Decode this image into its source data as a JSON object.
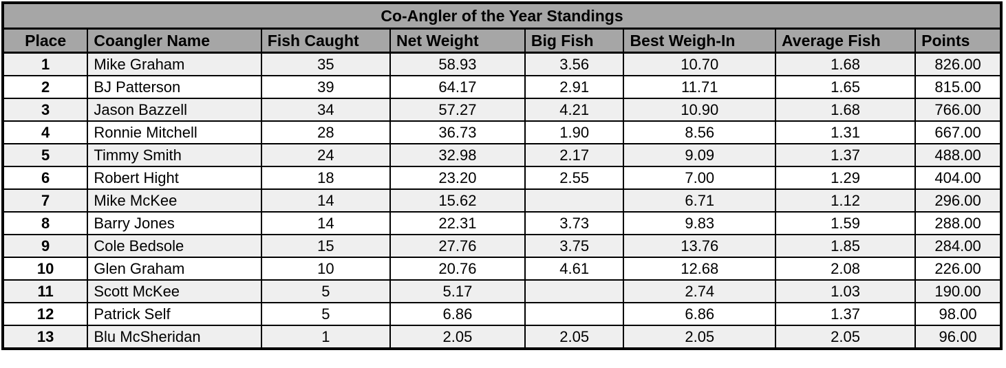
{
  "table": {
    "title": "Co-Angler of the Year Standings",
    "columns": [
      {
        "key": "place",
        "label": "Place"
      },
      {
        "key": "name",
        "label": "Coangler Name"
      },
      {
        "key": "fish_caught",
        "label": "Fish Caught"
      },
      {
        "key": "net_weight",
        "label": "Net Weight"
      },
      {
        "key": "big_fish",
        "label": "Big Fish"
      },
      {
        "key": "best_weigh_in",
        "label": "Best Weigh-In"
      },
      {
        "key": "average_fish",
        "label": "Average Fish"
      },
      {
        "key": "points",
        "label": "Points"
      }
    ],
    "rows": [
      {
        "place": "1",
        "name": "Mike Graham",
        "fish_caught": "35",
        "net_weight": "58.93",
        "big_fish": "3.56",
        "best_weigh_in": "10.70",
        "average_fish": "1.68",
        "points": "826.00"
      },
      {
        "place": "2",
        "name": "BJ Patterson",
        "fish_caught": "39",
        "net_weight": "64.17",
        "big_fish": "2.91",
        "best_weigh_in": "11.71",
        "average_fish": "1.65",
        "points": "815.00"
      },
      {
        "place": "3",
        "name": "Jason Bazzell",
        "fish_caught": "34",
        "net_weight": "57.27",
        "big_fish": "4.21",
        "best_weigh_in": "10.90",
        "average_fish": "1.68",
        "points": "766.00"
      },
      {
        "place": "4",
        "name": "Ronnie Mitchell",
        "fish_caught": "28",
        "net_weight": "36.73",
        "big_fish": "1.90",
        "best_weigh_in": "8.56",
        "average_fish": "1.31",
        "points": "667.00"
      },
      {
        "place": "5",
        "name": "Timmy Smith",
        "fish_caught": "24",
        "net_weight": "32.98",
        "big_fish": "2.17",
        "best_weigh_in": "9.09",
        "average_fish": "1.37",
        "points": "488.00"
      },
      {
        "place": "6",
        "name": "Robert Hight",
        "fish_caught": "18",
        "net_weight": "23.20",
        "big_fish": "2.55",
        "best_weigh_in": "7.00",
        "average_fish": "1.29",
        "points": "404.00"
      },
      {
        "place": "7",
        "name": "Mike McKee",
        "fish_caught": "14",
        "net_weight": "15.62",
        "big_fish": "",
        "best_weigh_in": "6.71",
        "average_fish": "1.12",
        "points": "296.00"
      },
      {
        "place": "8",
        "name": "Barry Jones",
        "fish_caught": "14",
        "net_weight": "22.31",
        "big_fish": "3.73",
        "best_weigh_in": "9.83",
        "average_fish": "1.59",
        "points": "288.00"
      },
      {
        "place": "9",
        "name": "Cole Bedsole",
        "fish_caught": "15",
        "net_weight": "27.76",
        "big_fish": "3.75",
        "best_weigh_in": "13.76",
        "average_fish": "1.85",
        "points": "284.00"
      },
      {
        "place": "10",
        "name": "Glen Graham",
        "fish_caught": "10",
        "net_weight": "20.76",
        "big_fish": "4.61",
        "best_weigh_in": "12.68",
        "average_fish": "2.08",
        "points": "226.00"
      },
      {
        "place": "11",
        "name": "Scott McKee",
        "fish_caught": "5",
        "net_weight": "5.17",
        "big_fish": "",
        "best_weigh_in": "2.74",
        "average_fish": "1.03",
        "points": "190.00"
      },
      {
        "place": "12",
        "name": "Patrick Self",
        "fish_caught": "5",
        "net_weight": "6.86",
        "big_fish": "",
        "best_weigh_in": "6.86",
        "average_fish": "1.37",
        "points": "98.00"
      },
      {
        "place": "13",
        "name": "Blu McSheridan",
        "fish_caught": "1",
        "net_weight": "2.05",
        "big_fish": "2.05",
        "best_weigh_in": "2.05",
        "average_fish": "2.05",
        "points": "96.00"
      }
    ]
  },
  "colors": {
    "header_bg": "#a6a6a6",
    "stripe_bg": "#efefef",
    "row_bg": "#ffffff",
    "border": "#000000",
    "text": "#000000"
  }
}
